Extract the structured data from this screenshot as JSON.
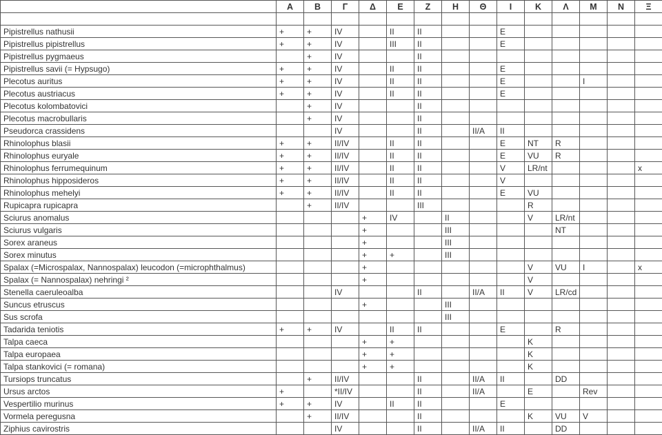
{
  "columns": [
    "Α",
    "Β",
    "Γ",
    "Δ",
    "Ε",
    "Ζ",
    "Η",
    "Θ",
    "Ι",
    "Κ",
    "Λ",
    "Μ",
    "Ν",
    "Ξ"
  ],
  "rows": [
    {
      "name": "",
      "cells": [
        "",
        "",
        "",
        "",
        "",
        "",
        "",
        "",
        "",
        "",
        "",
        "",
        "",
        ""
      ]
    },
    {
      "name": "Pipistrellus nathusii",
      "cells": [
        "+",
        "+",
        "IV",
        "",
        "II",
        "II",
        "",
        "",
        "E",
        "",
        "",
        "",
        "",
        ""
      ]
    },
    {
      "name": "Pipistrellus pipistrellus",
      "cells": [
        "+",
        "+",
        "IV",
        "",
        "III",
        "II",
        "",
        "",
        "E",
        "",
        "",
        "",
        "",
        ""
      ]
    },
    {
      "name": "Pipistrellus pygmaeus",
      "cells": [
        "",
        "+",
        "IV",
        "",
        "",
        "II",
        "",
        "",
        "",
        "",
        "",
        "",
        "",
        ""
      ]
    },
    {
      "name": "Pipistrellus savii (= Hypsugo)",
      "cells": [
        "+",
        "+",
        "IV",
        "",
        "II",
        "II",
        "",
        "",
        "E",
        "",
        "",
        "",
        "",
        ""
      ]
    },
    {
      "name": "Plecotus auritus",
      "cells": [
        "+",
        "+",
        "IV",
        "",
        "II",
        "II",
        "",
        "",
        "E",
        "",
        "",
        "I",
        "",
        ""
      ]
    },
    {
      "name": "Plecotus austriacus",
      "cells": [
        "+",
        "+",
        "IV",
        "",
        "II",
        "II",
        "",
        "",
        "E",
        "",
        "",
        "",
        "",
        ""
      ]
    },
    {
      "name": "Plecotus kolombatovici",
      "cells": [
        "",
        "+",
        "IV",
        "",
        "",
        "II",
        "",
        "",
        "",
        "",
        "",
        "",
        "",
        ""
      ]
    },
    {
      "name": "Plecotus macrobullaris",
      "cells": [
        "",
        "+",
        "IV",
        "",
        "",
        "II",
        "",
        "",
        "",
        "",
        "",
        "",
        "",
        ""
      ]
    },
    {
      "name": "Pseudorca crassidens",
      "cells": [
        "",
        "",
        "IV",
        "",
        "",
        "II",
        "",
        "II/A",
        "II",
        "",
        "",
        "",
        "",
        ""
      ]
    },
    {
      "name": "Rhinolophus blasii",
      "cells": [
        "+",
        "+",
        "II/IV",
        "",
        "II",
        "II",
        "",
        "",
        "E",
        "NT",
        "R",
        "",
        "",
        ""
      ]
    },
    {
      "name": "Rhinolophus euryale",
      "cells": [
        "+",
        "+",
        "II/IV",
        "",
        "II",
        "II",
        "",
        "",
        "E",
        "VU",
        "R",
        "",
        "",
        ""
      ]
    },
    {
      "name": "Rhinolophus ferrumequinum",
      "cells": [
        "+",
        "+",
        "II/IV",
        "",
        "II",
        "II",
        "",
        "",
        "V",
        "LR/nt",
        "",
        "",
        "",
        "x"
      ]
    },
    {
      "name": "Rhinolophus hipposideros",
      "cells": [
        "+",
        "+",
        "II/IV",
        "",
        "II",
        "II",
        "",
        "",
        "V",
        "",
        "",
        "",
        "",
        ""
      ]
    },
    {
      "name": "Rhinolophus mehelyi",
      "cells": [
        "+",
        "+",
        "II/IV",
        "",
        "II",
        "II",
        "",
        "",
        "E",
        "VU",
        "",
        "",
        "",
        ""
      ]
    },
    {
      "name": "Rupicapra rupicapra",
      "cells": [
        "",
        "+",
        "II/IV",
        "",
        "",
        "III",
        "",
        "",
        "",
        "R",
        "",
        "",
        "",
        ""
      ]
    },
    {
      "name": "Sciurus anomalus",
      "cells": [
        "",
        "",
        "",
        "+",
        "IV",
        "",
        "II",
        "",
        "",
        "V",
        "LR/nt",
        "",
        "",
        ""
      ]
    },
    {
      "name": "Sciurus vulgaris",
      "cells": [
        "",
        "",
        "",
        "+",
        "",
        "",
        "III",
        "",
        "",
        "",
        "NT",
        "",
        "",
        ""
      ]
    },
    {
      "name": "Sorex araneus",
      "cells": [
        "",
        "",
        "",
        "+",
        "",
        "",
        "III",
        "",
        "",
        "",
        "",
        "",
        "",
        ""
      ]
    },
    {
      "name": "Sorex minutus",
      "cells": [
        "",
        "",
        "",
        "+",
        "+",
        "",
        "III",
        "",
        "",
        "",
        "",
        "",
        "",
        ""
      ]
    },
    {
      "name": "Spalax (=Microspalax, Nannospalax) leucodon (=microphthalmus)",
      "cells": [
        "",
        "",
        "",
        "+",
        "",
        "",
        "",
        "",
        "",
        "V",
        "VU",
        "I",
        "",
        "x"
      ]
    },
    {
      "name": "Spalax (= Nannospalax) nehringi ²",
      "cells": [
        "",
        "",
        "",
        "+",
        "",
        "",
        "",
        "",
        "",
        "V",
        "",
        "",
        "",
        ""
      ]
    },
    {
      "name": "Stenella caeruleoalba",
      "cells": [
        "",
        "",
        "IV",
        "",
        "",
        "II",
        "",
        "II/A",
        "II",
        "V",
        "LR/cd",
        "",
        "",
        ""
      ]
    },
    {
      "name": "Suncus etruscus",
      "cells": [
        "",
        "",
        "",
        "+",
        "",
        "",
        "III",
        "",
        "",
        "",
        "",
        "",
        "",
        ""
      ]
    },
    {
      "name": "Sus scrofa",
      "cells": [
        "",
        "",
        "",
        "",
        "",
        "",
        "III",
        "",
        "",
        "",
        "",
        "",
        "",
        ""
      ]
    },
    {
      "name": "Tadarida teniotis",
      "cells": [
        "+",
        "+",
        "IV",
        "",
        "II",
        "II",
        "",
        "",
        "E",
        "",
        "R",
        "",
        "",
        ""
      ]
    },
    {
      "name": "Talpa caeca",
      "cells": [
        "",
        "",
        "",
        "+",
        "+",
        "",
        "",
        "",
        "",
        "K",
        "",
        "",
        "",
        ""
      ]
    },
    {
      "name": "Talpa europaea",
      "cells": [
        "",
        "",
        "",
        "+",
        "+",
        "",
        "",
        "",
        "",
        "K",
        "",
        "",
        "",
        ""
      ]
    },
    {
      "name": "Talpa stankovici (= romana)",
      "cells": [
        "",
        "",
        "",
        "+",
        "+",
        "",
        "",
        "",
        "",
        "K",
        "",
        "",
        "",
        ""
      ]
    },
    {
      "name": "Tursiops truncatus",
      "cells": [
        "",
        "+",
        "II/IV",
        "",
        "",
        "II",
        "",
        "II/A",
        "II",
        "",
        "DD",
        "",
        "",
        ""
      ]
    },
    {
      "name": "Ursus arctos",
      "cells": [
        "+",
        "",
        "*II/IV",
        "",
        "",
        "II",
        "",
        "II/A",
        "",
        "E",
        "",
        "Rev",
        "",
        ""
      ]
    },
    {
      "name": "Vespertilio murinus",
      "cells": [
        "+",
        "+",
        "IV",
        "",
        "II",
        "II",
        "",
        "",
        "E",
        "",
        "",
        "",
        "",
        ""
      ]
    },
    {
      "name": "Vormela peregusna",
      "cells": [
        "",
        "+",
        "II/IV",
        "",
        "",
        "II",
        "",
        "",
        "",
        "K",
        "VU",
        "V",
        "",
        ""
      ]
    },
    {
      "name": "Ziphius cavirostris",
      "cells": [
        "",
        "",
        "IV",
        "",
        "",
        "II",
        "",
        "II/A",
        "II",
        "",
        "DD",
        "",
        "",
        ""
      ]
    }
  ],
  "style": {
    "border_color": "#555555",
    "text_color": "#333333",
    "background_color": "#ffffff",
    "font_family": "Arial",
    "font_size_pt": 9,
    "header_font_weight": "bold"
  }
}
